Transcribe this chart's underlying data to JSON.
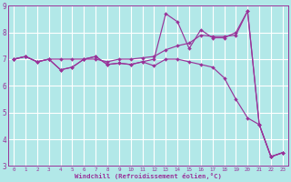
{
  "xlabel": "Windchill (Refroidissement éolien,°C)",
  "bg_color": "#b2e8e8",
  "grid_color": "#ffffff",
  "line_color": "#993399",
  "xlim_min": -0.5,
  "xlim_max": 23.5,
  "ylim_min": 3,
  "ylim_max": 9,
  "xticks": [
    0,
    1,
    2,
    3,
    4,
    5,
    6,
    7,
    8,
    9,
    10,
    11,
    12,
    13,
    14,
    15,
    16,
    17,
    18,
    19,
    20,
    21,
    22,
    23
  ],
  "yticks": [
    3,
    4,
    5,
    6,
    7,
    8,
    9
  ],
  "lines": [
    [
      7.0,
      7.1,
      6.9,
      7.0,
      7.0,
      7.0,
      7.0,
      7.0,
      6.9,
      7.0,
      7.0,
      7.05,
      7.1,
      7.35,
      7.5,
      7.6,
      7.9,
      7.85,
      7.85,
      7.9,
      8.8,
      4.55,
      3.35,
      3.5
    ],
    [
      7.0,
      7.1,
      6.9,
      7.0,
      6.6,
      6.7,
      7.0,
      7.1,
      6.8,
      6.85,
      6.8,
      6.9,
      7.0,
      8.7,
      8.4,
      7.4,
      8.1,
      7.8,
      7.8,
      8.0,
      8.8,
      4.55,
      3.35,
      3.5
    ],
    [
      7.0,
      7.1,
      6.9,
      7.0,
      6.6,
      6.7,
      7.0,
      7.1,
      6.8,
      6.85,
      6.8,
      6.9,
      6.75,
      7.0,
      7.0,
      6.9,
      6.8,
      6.7,
      6.3,
      5.5,
      4.8,
      4.55,
      3.35,
      3.5
    ]
  ]
}
